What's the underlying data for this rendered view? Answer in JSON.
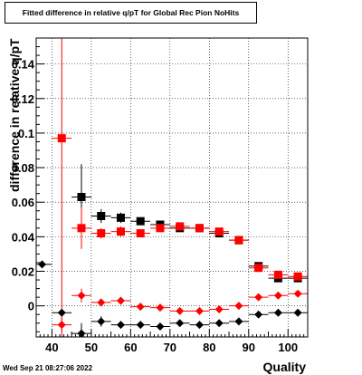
{
  "chart_data": {
    "type": "scatter",
    "title": "Fitted difference in relative q/pT for Global Rec Pion NoHits",
    "xlabel": "Quality",
    "ylabel": "difference in relative q/pT",
    "xlim": [
      36,
      105
    ],
    "ylim": [
      -0.018,
      0.155
    ],
    "grid": true,
    "x_ticks": [
      40,
      50,
      60,
      70,
      80,
      90,
      100
    ],
    "y_ticks": [
      0,
      0.02,
      0.04,
      0.06,
      0.08,
      0.1,
      0.12,
      0.14
    ],
    "y_tick_labels": [
      "0",
      "0.02",
      "0.04",
      "0.06",
      "0.08",
      "0.1",
      "0.12",
      "0.14"
    ],
    "series": [
      {
        "color": "#000000",
        "marker": "square",
        "points": [
          {
            "x": 47.5,
            "y": 0.063,
            "yerr": 0.019
          },
          {
            "x": 52.5,
            "y": 0.052,
            "yerr": 0.004
          },
          {
            "x": 57.5,
            "y": 0.051,
            "yerr": 0.003
          },
          {
            "x": 62.5,
            "y": 0.049,
            "yerr": 0.002
          },
          {
            "x": 67.5,
            "y": 0.047,
            "yerr": 0.002
          },
          {
            "x": 72.5,
            "y": 0.045,
            "yerr": 0.002
          },
          {
            "x": 77.5,
            "y": 0.045,
            "yerr": 0.002
          },
          {
            "x": 82.5,
            "y": 0.042,
            "yerr": 0.002
          },
          {
            "x": 87.5,
            "y": 0.038,
            "yerr": 0.002
          },
          {
            "x": 92.5,
            "y": 0.023,
            "yerr": 0.002
          },
          {
            "x": 97.5,
            "y": 0.016,
            "yerr": 0.002
          },
          {
            "x": 102.5,
            "y": 0.016,
            "yerr": 0.002
          }
        ]
      },
      {
        "color": "#ff0000",
        "marker": "square",
        "points": [
          {
            "x": 42.5,
            "y": 0.097,
            "yerr": 0.14
          },
          {
            "x": 47.5,
            "y": 0.045,
            "yerr": 0.012
          },
          {
            "x": 52.5,
            "y": 0.042,
            "yerr": 0.003
          },
          {
            "x": 57.5,
            "y": 0.043,
            "yerr": 0.003
          },
          {
            "x": 62.5,
            "y": 0.042,
            "yerr": 0.002
          },
          {
            "x": 67.5,
            "y": 0.045,
            "yerr": 0.002
          },
          {
            "x": 72.5,
            "y": 0.046,
            "yerr": 0.002
          },
          {
            "x": 77.5,
            "y": 0.045,
            "yerr": 0.002
          },
          {
            "x": 82.5,
            "y": 0.043,
            "yerr": 0.002
          },
          {
            "x": 87.5,
            "y": 0.038,
            "yerr": 0.002
          },
          {
            "x": 92.5,
            "y": 0.022,
            "yerr": 0.002
          },
          {
            "x": 97.5,
            "y": 0.018,
            "yerr": 0.002
          },
          {
            "x": 102.5,
            "y": 0.017,
            "yerr": 0.002
          }
        ]
      },
      {
        "color": "#000000",
        "marker": "diamond",
        "points": [
          {
            "x": 37.5,
            "y": 0.024,
            "yerr": 0
          },
          {
            "x": 42.5,
            "y": -0.004,
            "yerr": 0.002
          },
          {
            "x": 47.5,
            "y": -0.016,
            "yerr": 0.006
          },
          {
            "x": 52.5,
            "y": -0.009,
            "yerr": 0.003
          },
          {
            "x": 57.5,
            "y": -0.011,
            "yerr": 0.002
          },
          {
            "x": 62.5,
            "y": -0.011,
            "yerr": 0.002
          },
          {
            "x": 67.5,
            "y": -0.012,
            "yerr": 0.001
          },
          {
            "x": 72.5,
            "y": -0.01,
            "yerr": 0.001
          },
          {
            "x": 77.5,
            "y": -0.011,
            "yerr": 0.001
          },
          {
            "x": 82.5,
            "y": -0.01,
            "yerr": 0.001
          },
          {
            "x": 87.5,
            "y": -0.009,
            "yerr": 0.001
          },
          {
            "x": 92.5,
            "y": -0.005,
            "yerr": 0.001
          },
          {
            "x": 97.5,
            "y": -0.004,
            "yerr": 0.001
          },
          {
            "x": 102.5,
            "y": -0.004,
            "yerr": 0.001
          }
        ]
      },
      {
        "color": "#ff0000",
        "marker": "diamond",
        "points": [
          {
            "x": 42.5,
            "y": -0.011,
            "yerr": 0.004
          },
          {
            "x": 47.5,
            "y": 0.006,
            "yerr": 0.004
          },
          {
            "x": 52.5,
            "y": 0.002,
            "yerr": 0.002
          },
          {
            "x": 57.5,
            "y": 0.003,
            "yerr": 0.002
          },
          {
            "x": 62.5,
            "y": -0.0005,
            "yerr": 0.001
          },
          {
            "x": 67.5,
            "y": -0.001,
            "yerr": 0.001
          },
          {
            "x": 72.5,
            "y": -0.003,
            "yerr": 0.001
          },
          {
            "x": 77.5,
            "y": -0.003,
            "yerr": 0.001
          },
          {
            "x": 82.5,
            "y": -0.002,
            "yerr": 0.001
          },
          {
            "x": 87.5,
            "y": 0.0,
            "yerr": 0.001
          },
          {
            "x": 92.5,
            "y": 0.005,
            "yerr": 0.001
          },
          {
            "x": 97.5,
            "y": 0.006,
            "yerr": 0.001
          },
          {
            "x": 102.5,
            "y": 0.007,
            "yerr": 0.001
          }
        ]
      }
    ]
  },
  "footer": {
    "date": "Wed Sep 21 08:27:06 2022"
  }
}
